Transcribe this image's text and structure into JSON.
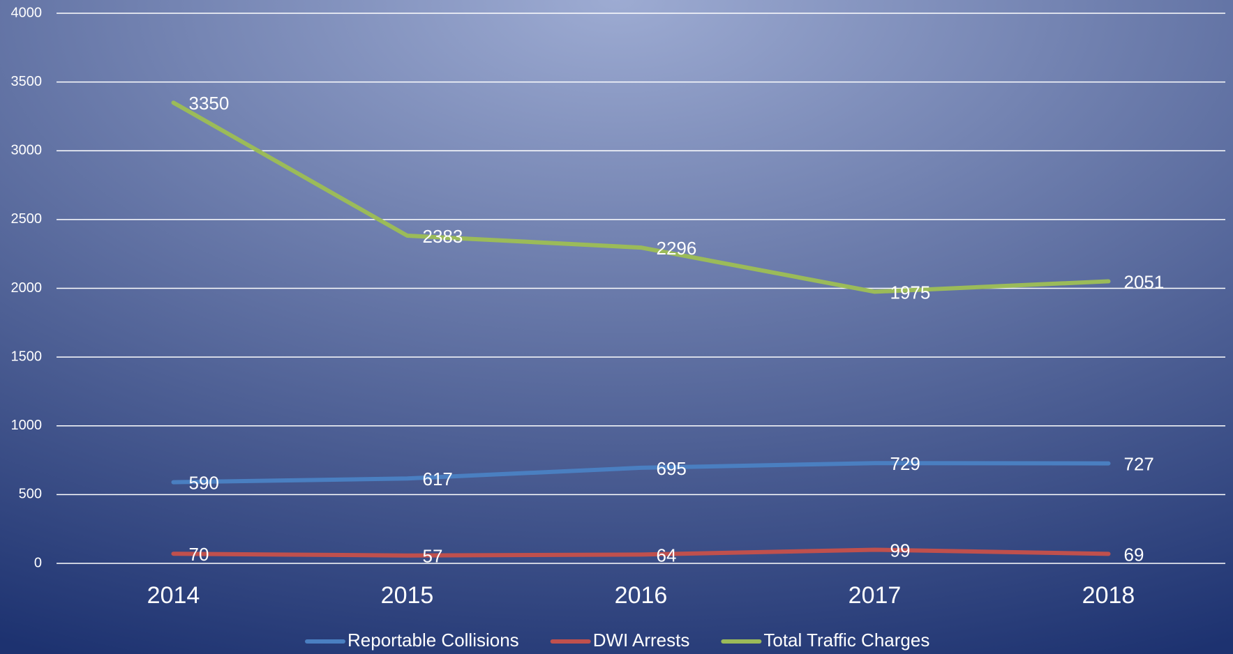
{
  "chart_data": {
    "type": "line",
    "categories": [
      "2014",
      "2015",
      "2016",
      "2017",
      "2018"
    ],
    "series": [
      {
        "name": "Reportable Collisions",
        "color": "#4a7fc1",
        "values": [
          590,
          617,
          695,
          729,
          727
        ]
      },
      {
        "name": "DWI Arrests",
        "color": "#c0504d",
        "values": [
          70,
          57,
          64,
          99,
          69
        ]
      },
      {
        "name": "Total Traffic Charges",
        "color": "#9bbb59",
        "values": [
          3350,
          2383,
          2296,
          1975,
          2051
        ]
      }
    ],
    "ylim": [
      0,
      4000
    ],
    "yticks": [
      0,
      500,
      1000,
      1500,
      2000,
      2500,
      3000,
      3500,
      4000
    ],
    "grid": true,
    "legend": "bottom"
  }
}
